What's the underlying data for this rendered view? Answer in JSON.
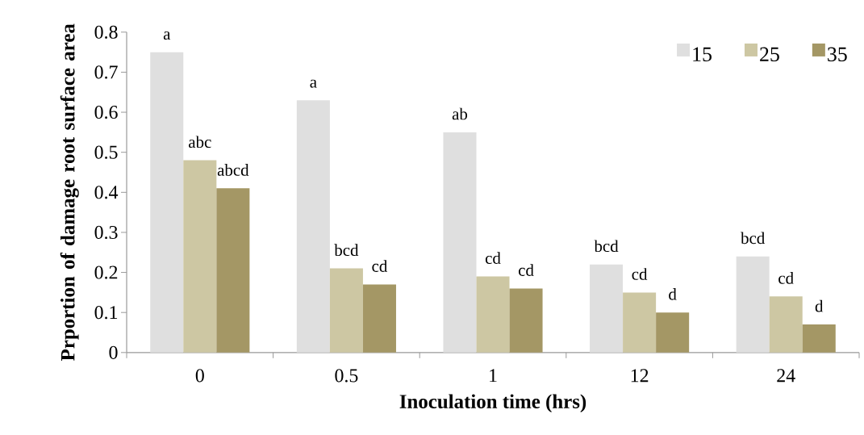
{
  "chart_data": {
    "type": "bar",
    "xlabel": "Inoculation time (hrs)",
    "ylabel": "Prportion of damage root surface area",
    "categories": [
      "0",
      "0.5",
      "1",
      "12",
      "24"
    ],
    "series": [
      {
        "name": "15",
        "color": "#dfdfdf",
        "values": [
          0.75,
          0.63,
          0.55,
          0.22,
          0.24
        ],
        "value_labels": [
          "a",
          "a",
          "ab",
          "bcd",
          "bcd"
        ]
      },
      {
        "name": "25",
        "color": "#cdc7a3",
        "values": [
          0.48,
          0.21,
          0.19,
          0.15,
          0.14
        ],
        "value_labels": [
          "abc",
          "bcd",
          "cd",
          "cd",
          "cd"
        ]
      },
      {
        "name": "35",
        "color": "#a49765",
        "values": [
          0.41,
          0.17,
          0.16,
          0.1,
          0.07
        ],
        "value_labels": [
          "abcd",
          "cd",
          "cd",
          "d",
          "d"
        ]
      }
    ],
    "ylim": [
      0,
      0.8
    ],
    "yticks": [
      0,
      0.1,
      0.2,
      0.3,
      0.4,
      0.5,
      0.6,
      0.7,
      0.8
    ],
    "legend": "top right",
    "grid": false
  }
}
